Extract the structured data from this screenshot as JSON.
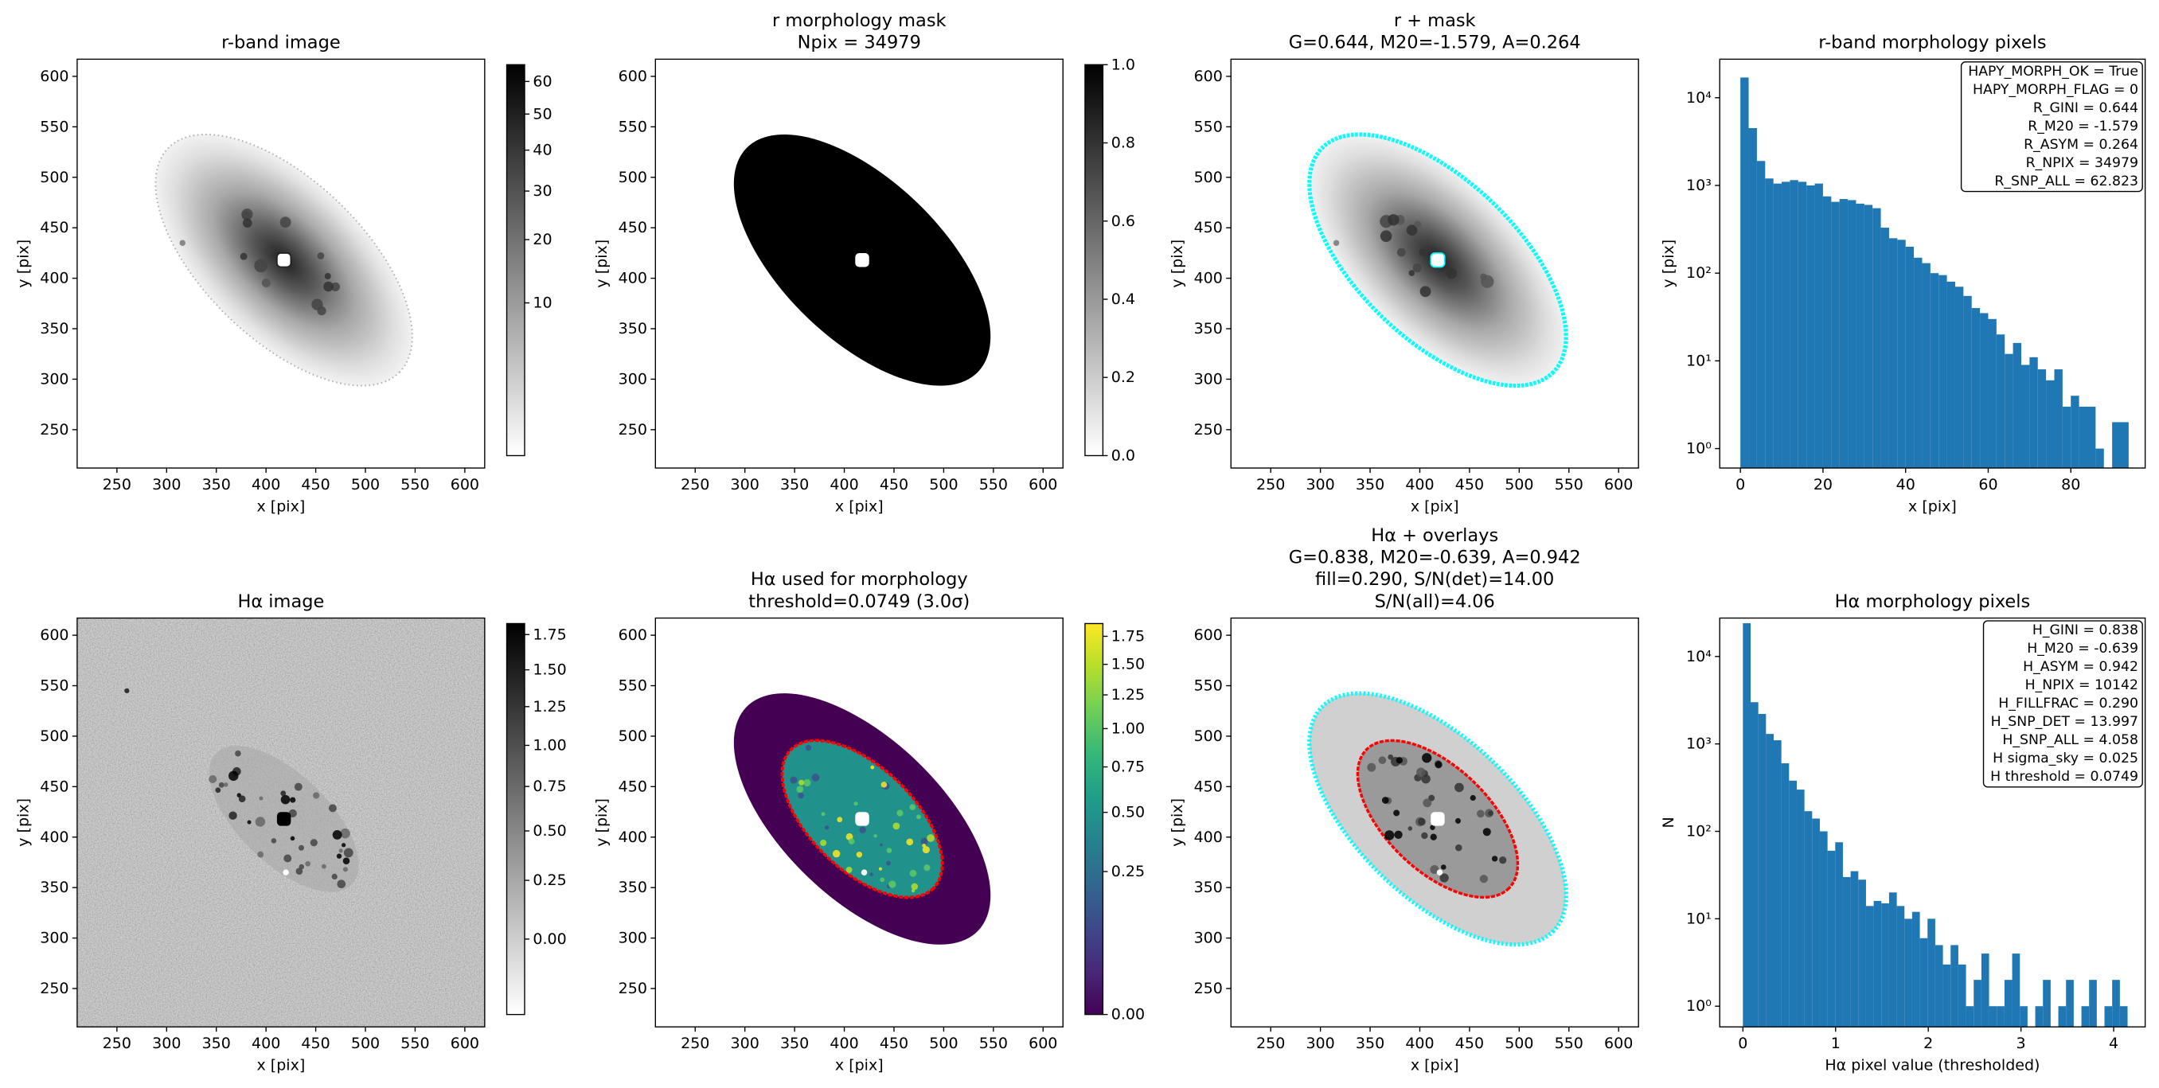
{
  "chart_data": [
    {
      "type": "image",
      "title": "r-band image",
      "xlabel": "x [pix]",
      "ylabel": "y [pix]",
      "xlim": [
        210,
        620
      ],
      "ylim": [
        212,
        617
      ],
      "xticks": [
        250,
        300,
        350,
        400,
        450,
        500,
        550,
        600
      ],
      "yticks": [
        250,
        300,
        350,
        400,
        450,
        500,
        550,
        600
      ],
      "colorbar": {
        "cmap": "gray_r",
        "clim": [
          0,
          65.5
        ],
        "gamma": 0.5,
        "ticks": [
          10,
          20,
          30,
          40,
          50,
          60
        ]
      }
    },
    {
      "type": "image",
      "title": [
        "r morphology mask",
        "Npix = 34979"
      ],
      "xlabel": "x [pix]",
      "ylabel": "y [pix]",
      "xlim": [
        210,
        620
      ],
      "ylim": [
        212,
        617
      ],
      "xticks": [
        250,
        300,
        350,
        400,
        450,
        500,
        550,
        600
      ],
      "yticks": [
        250,
        300,
        350,
        400,
        450,
        500,
        550,
        600
      ],
      "colorbar": {
        "cmap": "gray_r",
        "clim": [
          0,
          1
        ],
        "gamma": 1,
        "ticks": [
          {
            "value": 0,
            "label": "0.0"
          },
          0.2,
          0.4,
          0.6,
          0.8,
          {
            "value": 1,
            "label": "1.0"
          }
        ]
      }
    },
    {
      "type": "image",
      "title": [
        "r + mask",
        "G=0.644, M20=-1.579, A=0.264"
      ],
      "xlabel": "x [pix]",
      "ylabel": "y [pix]",
      "xlim": [
        210,
        620
      ],
      "ylim": [
        212,
        617
      ],
      "xticks": [
        250,
        300,
        350,
        400,
        450,
        500,
        550,
        600
      ],
      "yticks": [
        250,
        300,
        350,
        400,
        450,
        500,
        550,
        600
      ],
      "mask_color": "#00ffff"
    },
    {
      "type": "histogram",
      "title": "r-band morphology pixels",
      "xlabel": "x [pix]",
      "ylabel": "y [pix]",
      "color": "#1f77b4",
      "log_y": true,
      "xlim": [
        -5,
        98
      ],
      "ylim": [
        0.6,
        27500
      ],
      "xticks": [
        0,
        20,
        40,
        60,
        80
      ],
      "yticks": [
        {
          "value": 1,
          "label": "10⁰"
        },
        {
          "value": 10,
          "label": "10¹"
        },
        {
          "value": 100,
          "label": "10²"
        },
        {
          "value": 1000,
          "label": "10³"
        },
        {
          "value": 10000,
          "label": "10⁴"
        }
      ],
      "bins": [
        0,
        2,
        4,
        6,
        8,
        10,
        12,
        14,
        16,
        18,
        20,
        22,
        24,
        26,
        28,
        30,
        32,
        34,
        36,
        38,
        40,
        42,
        44,
        46,
        48,
        50,
        52,
        54,
        56,
        58,
        60,
        62,
        64,
        66,
        68,
        70,
        72,
        74,
        76,
        78,
        80,
        82,
        84,
        86,
        88,
        90,
        92,
        94
      ],
      "values": [
        17000,
        4500,
        1900,
        1200,
        1050,
        1100,
        1150,
        1100,
        1000,
        1050,
        750,
        650,
        700,
        680,
        620,
        600,
        550,
        330,
        250,
        240,
        200,
        150,
        130,
        100,
        95,
        80,
        70,
        55,
        40,
        35,
        30,
        20,
        12,
        16,
        9,
        11,
        8,
        6,
        8,
        3,
        4,
        3,
        3,
        1,
        0,
        2,
        2
      ],
      "annotation": [
        "HAPY_MORPH_OK = True",
        "HAPY_MORPH_FLAG = 0",
        "R_GINI = 0.644",
        "R_M20 = -1.579",
        "R_ASYM = 0.264",
        "R_NPIX = 34979",
        "R_SNP_ALL = 62.823"
      ],
      "annotation_corner": "upper right"
    },
    {
      "type": "image",
      "title": "Hα image",
      "xlabel": "x [pix]",
      "ylabel": "y [pix]",
      "xlim": [
        210,
        620
      ],
      "ylim": [
        212,
        617
      ],
      "xticks": [
        250,
        300,
        350,
        400,
        450,
        500,
        550,
        600
      ],
      "yticks": [
        250,
        300,
        350,
        400,
        450,
        500,
        550,
        600
      ],
      "colorbar": {
        "cmap": "gray_r",
        "clim": [
          -0.2,
          1.83
        ],
        "gamma": 0.71,
        "ticks": [
          {
            "value": 0,
            "label": "0.00"
          },
          0.25,
          {
            "value": 0.5,
            "label": "0.50"
          },
          0.75,
          {
            "value": 1,
            "label": "1.00"
          },
          1.25,
          {
            "value": 1.5,
            "label": "1.50"
          },
          1.75
        ]
      }
    },
    {
      "type": "image",
      "title": [
        "Hα used for morphology",
        "threshold=0.0749 (3.0σ)"
      ],
      "xlabel": "x [pix]",
      "ylabel": "y [pix]",
      "xlim": [
        210,
        620
      ],
      "ylim": [
        212,
        617
      ],
      "xticks": [
        250,
        300,
        350,
        400,
        450,
        500,
        550,
        600
      ],
      "yticks": [
        250,
        300,
        350,
        400,
        450,
        500,
        550,
        600
      ],
      "contour_color": "#ff0000",
      "colorbar": {
        "cmap": "viridis",
        "clim": [
          0,
          1.87
        ],
        "gamma": 0.5,
        "ticks": [
          {
            "value": 0,
            "label": "0.00"
          },
          0.25,
          {
            "value": 0.5,
            "label": "0.50"
          },
          0.75,
          {
            "value": 1,
            "label": "1.00"
          },
          1.25,
          {
            "value": 1.5,
            "label": "1.50"
          },
          1.75
        ]
      }
    },
    {
      "type": "image",
      "title": [
        "Hα + overlays",
        "G=0.838, M20=-0.639, A=0.942",
        "fill=0.290, S/N(det)=14.00",
        "S/N(all)=4.06"
      ],
      "xlabel": "x [pix]",
      "ylabel": "y [pix]",
      "xlim": [
        210,
        620
      ],
      "ylim": [
        212,
        617
      ],
      "xticks": [
        250,
        300,
        350,
        400,
        450,
        500,
        550,
        600
      ],
      "yticks": [
        250,
        300,
        350,
        400,
        450,
        500,
        550,
        600
      ],
      "mask_color": "#00ffff",
      "contour_color": "#ff0000"
    },
    {
      "type": "histogram",
      "title": "Hα morphology pixels",
      "xlabel": "Hα pixel value (thresholded)",
      "ylabel": "N",
      "color": "#1f77b4",
      "log_y": true,
      "xlim": [
        -0.25,
        4.34
      ],
      "ylim": [
        0.58,
        27500
      ],
      "xticks": [
        0,
        1,
        2,
        3,
        4
      ],
      "yticks": [
        {
          "value": 1,
          "label": "10⁰"
        },
        {
          "value": 10,
          "label": "10¹"
        },
        {
          "value": 100,
          "label": "10²"
        },
        {
          "value": 1000,
          "label": "10³"
        },
        {
          "value": 10000,
          "label": "10⁴"
        }
      ],
      "bins": [
        0,
        0.083,
        0.166,
        0.249,
        0.332,
        0.415,
        0.498,
        0.581,
        0.664,
        0.747,
        0.83,
        0.913,
        0.996,
        1.079,
        1.162,
        1.245,
        1.328,
        1.411,
        1.494,
        1.577,
        1.66,
        1.743,
        1.826,
        1.909,
        1.992,
        2.075,
        2.158,
        2.241,
        2.324,
        2.407,
        2.49,
        2.573,
        2.656,
        2.739,
        2.822,
        2.905,
        2.988,
        3.071,
        3.154,
        3.237,
        3.32,
        3.403,
        3.486,
        3.569,
        3.652,
        3.735,
        3.818,
        3.901,
        3.984,
        4.067,
        4.15
      ],
      "values": [
        24000,
        3000,
        2200,
        1300,
        1100,
        600,
        380,
        300,
        170,
        140,
        100,
        60,
        75,
        30,
        35,
        28,
        14,
        16,
        15,
        20,
        14,
        10,
        12,
        6,
        10,
        5,
        3,
        5,
        3,
        1,
        2,
        4,
        1,
        1,
        2,
        4,
        1,
        0,
        1,
        2,
        0,
        1,
        2,
        0,
        1,
        2,
        0,
        1,
        2,
        1
      ],
      "annotation": [
        "H_GINI = 0.838",
        "H_M20 = -0.639",
        "H_ASYM = 0.942",
        "H_NPIX = 10142",
        "H_FILLFRAC = 0.290",
        "H_SNP_DET = 13.997",
        "H_SNP_ALL = 4.058",
        "H sigma_sky = 0.025",
        "H threshold = 0.0749"
      ],
      "annotation_corner": "upper right"
    }
  ]
}
